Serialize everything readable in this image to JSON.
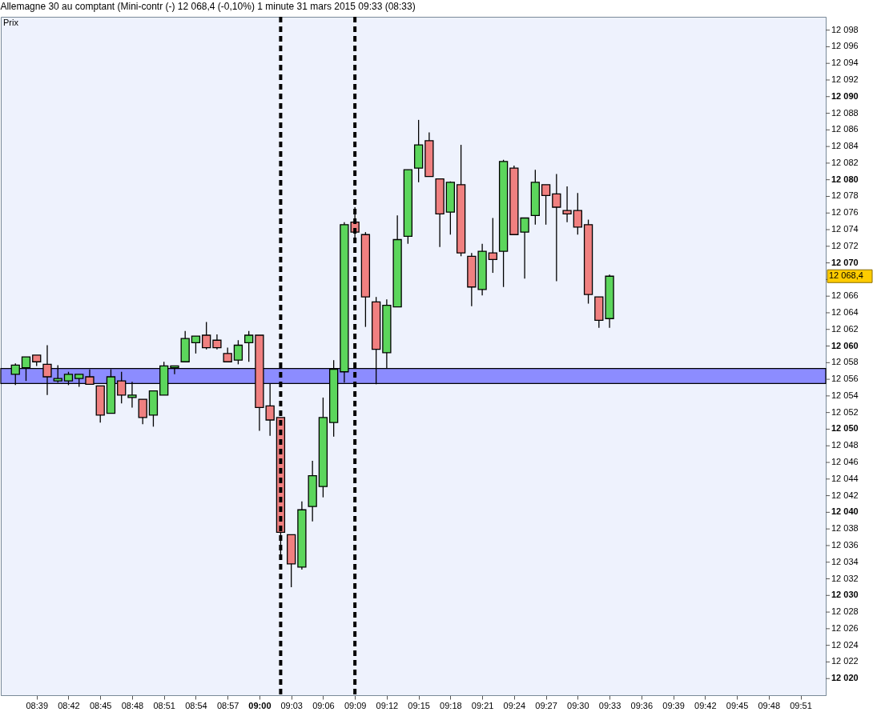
{
  "chart_data": {
    "type": "candlestick",
    "title": "Allemagne 30 au comptant (Mini-contr (-)    12 068,4 (-0,10%)    1 minute  31 mars 2015 09:33 (08:33)",
    "annotations": [
      "Prix",
      "12 068,4"
    ],
    "x": [
      "2015-03-31T08:37",
      "2015-03-31T08:38",
      "2015-03-31T08:39",
      "2015-03-31T08:40",
      "2015-03-31T08:41",
      "2015-03-31T08:42",
      "2015-03-31T08:43",
      "2015-03-31T08:44",
      "2015-03-31T08:45",
      "2015-03-31T08:46",
      "2015-03-31T08:47",
      "2015-03-31T08:48",
      "2015-03-31T08:49",
      "2015-03-31T08:50",
      "2015-03-31T08:51",
      "2015-03-31T08:52",
      "2015-03-31T08:53",
      "2015-03-31T08:54",
      "2015-03-31T08:55",
      "2015-03-31T08:56",
      "2015-03-31T08:57",
      "2015-03-31T08:58",
      "2015-03-31T08:59",
      "2015-03-31T09:00",
      "2015-03-31T09:01",
      "2015-03-31T09:02",
      "2015-03-31T09:03",
      "2015-03-31T09:04",
      "2015-03-31T09:05",
      "2015-03-31T09:06",
      "2015-03-31T09:07",
      "2015-03-31T09:08",
      "2015-03-31T09:09",
      "2015-03-31T09:10",
      "2015-03-31T09:11",
      "2015-03-31T09:12",
      "2015-03-31T09:13",
      "2015-03-31T09:14",
      "2015-03-31T09:15",
      "2015-03-31T09:16",
      "2015-03-31T09:17",
      "2015-03-31T09:18",
      "2015-03-31T09:19",
      "2015-03-31T09:20",
      "2015-03-31T09:21",
      "2015-03-31T09:22",
      "2015-03-31T09:23",
      "2015-03-31T09:24",
      "2015-03-31T09:25",
      "2015-03-31T09:26",
      "2015-03-31T09:27",
      "2015-03-31T09:28",
      "2015-03-31T09:29",
      "2015-03-31T09:30",
      "2015-03-31T09:31",
      "2015-03-31T09:32",
      "2015-03-31T09:33"
    ],
    "ohlc": [
      [
        12056.6,
        12057.9,
        12055.3,
        12057.7
      ],
      [
        12057.4,
        12058.7,
        12055.8,
        12058.7
      ],
      [
        12058.9,
        12058.9,
        12057.6,
        12058.1
      ],
      [
        12057.8,
        12060.1,
        12054.1,
        12056.3
      ],
      [
        12055.8,
        12057.7,
        12055.6,
        12056.1
      ],
      [
        12055.8,
        12056.9,
        12055.3,
        12056.6
      ],
      [
        12056.1,
        12056.6,
        12055.1,
        12056.6
      ],
      [
        12056.3,
        12057.2,
        12055.4,
        12055.4
      ],
      [
        12055.2,
        12055.2,
        12050.8,
        12051.7
      ],
      [
        12051.9,
        12057.2,
        12051.9,
        12056.3
      ],
      [
        12055.8,
        12056.9,
        12053.1,
        12054.1
      ],
      [
        12053.8,
        12055.7,
        12052.6,
        12054.1
      ],
      [
        12053.6,
        12053.6,
        12050.6,
        12051.4
      ],
      [
        12051.7,
        12054.6,
        12050.3,
        12054.6
      ],
      [
        12054.1,
        12058.1,
        12054.1,
        12057.6
      ],
      [
        12057.4,
        12057.6,
        12056.6,
        12057.6
      ],
      [
        12058.1,
        12061.8,
        12058.1,
        12060.9
      ],
      [
        12060.4,
        12061.2,
        12059.1,
        12061.2
      ],
      [
        12061.3,
        12062.9,
        12059.6,
        12059.8
      ],
      [
        12060.7,
        12061.4,
        12059.6,
        12059.8
      ],
      [
        12059.1,
        12059.8,
        12058.1,
        12058.1
      ],
      [
        12058.3,
        12060.7,
        12057.8,
        12060.1
      ],
      [
        12060.4,
        12061.8,
        12058.1,
        12061.3
      ],
      [
        12061.3,
        12061.3,
        12049.8,
        12052.6
      ],
      [
        12052.8,
        12055.5,
        12049.2,
        12051.1
      ],
      [
        12051.4,
        12051.4,
        12034.5,
        12037.6
      ],
      [
        12037.3,
        12037.3,
        12031.0,
        12033.8
      ],
      [
        12033.4,
        12041.3,
        12033.1,
        12040.3
      ],
      [
        12040.7,
        12046.2,
        12038.9,
        12044.4
      ],
      [
        12043.1,
        12053.8,
        12041.8,
        12051.4
      ],
      [
        12050.8,
        12058.3,
        12049.1,
        12057.2
      ],
      [
        12056.9,
        12074.9,
        12055.6,
        12074.6
      ],
      [
        12074.9,
        12076.7,
        12072.6,
        12073.7
      ],
      [
        12073.4,
        12073.7,
        12062.3,
        12065.9
      ],
      [
        12065.3,
        12065.9,
        12055.4,
        12059.6
      ],
      [
        12059.2,
        12065.6,
        12057.3,
        12064.9
      ],
      [
        12064.7,
        12075.7,
        12064.7,
        12072.8
      ],
      [
        12073.2,
        12081.2,
        12072.3,
        12081.2
      ],
      [
        12081.4,
        12087.2,
        12079.7,
        12084.2
      ],
      [
        12084.7,
        12085.7,
        12080.4,
        12080.4
      ],
      [
        12080.1,
        12080.1,
        12071.9,
        12075.9
      ],
      [
        12076.1,
        12079.8,
        12073.4,
        12079.7
      ],
      [
        12079.4,
        12084.2,
        12070.8,
        12071.2
      ],
      [
        12070.8,
        12071.2,
        12064.8,
        12067.1
      ],
      [
        12066.8,
        12072.3,
        12066.1,
        12071.4
      ],
      [
        12071.2,
        12075.4,
        12068.8,
        12070.4
      ],
      [
        12071.4,
        12082.4,
        12067.1,
        12082.2
      ],
      [
        12081.4,
        12081.7,
        12073.4,
        12073.4
      ],
      [
        12073.7,
        12075.4,
        12068.1,
        12075.4
      ],
      [
        12075.7,
        12081.2,
        12074.6,
        12079.7
      ],
      [
        12079.4,
        12079.4,
        12074.6,
        12078.1
      ],
      [
        12078.3,
        12080.7,
        12067.8,
        12076.7
      ],
      [
        12076.3,
        12079.2,
        12074.9,
        12075.9
      ],
      [
        12076.3,
        12078.4,
        12073.4,
        12074.3
      ],
      [
        12074.6,
        12075.2,
        12065.1,
        12066.2
      ],
      [
        12065.9,
        12065.9,
        12062.2,
        12063.1
      ],
      [
        12063.3,
        12068.6,
        12062.2,
        12068.4
      ]
    ],
    "colors": [
      "#5cd65c",
      "#5cd65c",
      "#f08080",
      "#f08080",
      "#5cd65c",
      "#5cd65c",
      "#5cd65c",
      "#f08080",
      "#f08080",
      "#5cd65c",
      "#f08080",
      "#5cd65c",
      "#f08080",
      "#5cd65c",
      "#5cd65c",
      "#5cd65c",
      "#5cd65c",
      "#5cd65c",
      "#f08080",
      "#f08080",
      "#f08080",
      "#5cd65c",
      "#5cd65c",
      "#f08080",
      "#f08080",
      "#f08080",
      "#f08080",
      "#5cd65c",
      "#5cd65c",
      "#5cd65c",
      "#5cd65c",
      "#5cd65c",
      "#f08080",
      "#f08080",
      "#f08080",
      "#5cd65c",
      "#5cd65c",
      "#5cd65c",
      "#5cd65c",
      "#f08080",
      "#f08080",
      "#5cd65c",
      "#f08080",
      "#f08080",
      "#5cd65c",
      "#f08080",
      "#5cd65c",
      "#f08080",
      "#5cd65c",
      "#5cd65c",
      "#f08080",
      "#f08080",
      "#f08080",
      "#f08080",
      "#f08080",
      "#f08080",
      "#5cd65c"
    ],
    "xlim": [
      "2015-03-31T08:36",
      "2015-03-31T09:53"
    ],
    "xticks": [
      {
        "value": "2015-03-31T08:39",
        "label": "08:39"
      },
      {
        "value": "2015-03-31T08:42",
        "label": "08:42"
      },
      {
        "value": "2015-03-31T08:45",
        "label": "08:45"
      },
      {
        "value": "2015-03-31T08:48",
        "label": "08:48"
      },
      {
        "value": "2015-03-31T08:51",
        "label": "08:51"
      },
      {
        "value": "2015-03-31T08:54",
        "label": "08:54"
      },
      {
        "value": "2015-03-31T08:57",
        "label": "08:57"
      },
      {
        "value": "2015-03-31T09:00",
        "label": "09:00"
      },
      {
        "value": "2015-03-31T09:03",
        "label": "09:03"
      },
      {
        "value": "2015-03-31T09:06",
        "label": "09:06"
      },
      {
        "value": "2015-03-31T09:09",
        "label": "09:09"
      },
      {
        "value": "2015-03-31T09:12",
        "label": "09:12"
      },
      {
        "value": "2015-03-31T09:15",
        "label": "09:15"
      },
      {
        "value": "2015-03-31T09:18",
        "label": "09:18"
      },
      {
        "value": "2015-03-31T09:21",
        "label": "09:21"
      },
      {
        "value": "2015-03-31T09:24",
        "label": "09:24"
      },
      {
        "value": "2015-03-31T09:27",
        "label": "09:27"
      },
      {
        "value": "2015-03-31T09:30",
        "label": "09:30"
      },
      {
        "value": "2015-03-31T09:33",
        "label": "09:33"
      },
      {
        "value": "2015-03-31T09:36",
        "label": "09:36"
      },
      {
        "value": "2015-03-31T09:39",
        "label": "09:39"
      },
      {
        "value": "2015-03-31T09:42",
        "label": "09:42"
      },
      {
        "value": "2015-03-31T09:45",
        "label": "09:45"
      },
      {
        "value": "2015-03-31T09:48",
        "label": "09:48"
      },
      {
        "value": "2015-03-31T09:51",
        "label": "09:51"
      }
    ],
    "ylim": [
      12018,
      12099.6
    ],
    "yticks": [
      {
        "value": 12020,
        "label": "12 020"
      },
      {
        "value": 12022,
        "label": "12 022"
      },
      {
        "value": 12024,
        "label": "12 024"
      },
      {
        "value": 12026,
        "label": "12 026"
      },
      {
        "value": 12028,
        "label": "12 028"
      },
      {
        "value": 12030,
        "label": "12 030"
      },
      {
        "value": 12032,
        "label": "12 032"
      },
      {
        "value": 12034,
        "label": "12 034"
      },
      {
        "value": 12036,
        "label": "12 036"
      },
      {
        "value": 12038,
        "label": "12 038"
      },
      {
        "value": 12040,
        "label": "12 040"
      },
      {
        "value": 12042,
        "label": "12 042"
      },
      {
        "value": 12044,
        "label": "12 044"
      },
      {
        "value": 12046,
        "label": "12 046"
      },
      {
        "value": 12048,
        "label": "12 048"
      },
      {
        "value": 12050,
        "label": "12 050"
      },
      {
        "value": 12052,
        "label": "12 052"
      },
      {
        "value": 12054,
        "label": "12 054"
      },
      {
        "value": 12056,
        "label": "12 056"
      },
      {
        "value": 12058,
        "label": "12 058"
      },
      {
        "value": 12060,
        "label": "12 060"
      },
      {
        "value": 12062,
        "label": "12 062"
      },
      {
        "value": 12064,
        "label": "12 064"
      },
      {
        "value": 12066,
        "label": "12 066"
      },
      {
        "value": 12068,
        "label": null
      },
      {
        "value": 12070,
        "label": "12 070"
      },
      {
        "value": 12072,
        "label": "12 072"
      },
      {
        "value": 12074,
        "label": "12 074"
      },
      {
        "value": 12076,
        "label": "12 076"
      },
      {
        "value": 12078,
        "label": "12 078"
      },
      {
        "value": 12080,
        "label": "12 080"
      },
      {
        "value": 12082,
        "label": "12 082"
      },
      {
        "value": 12084,
        "label": "12 084"
      },
      {
        "value": 12086,
        "label": "12 086"
      },
      {
        "value": 12088,
        "label": "12 088"
      },
      {
        "value": 12090,
        "label": "12 090"
      },
      {
        "value": 12092,
        "label": "12 092"
      },
      {
        "value": 12094,
        "label": "12 094"
      },
      {
        "value": 12096,
        "label": "12 096"
      },
      {
        "value": 12098,
        "label": "12 098"
      }
    ],
    "bands": [
      {
        "axis": "y",
        "from": 12055.5,
        "to": 12057.3,
        "color": "#8c8cff"
      }
    ],
    "ref_lines": [
      {
        "axis": "x",
        "value": "2015-03-31T09:02",
        "color": "#000000",
        "line_style": "dashed"
      },
      {
        "axis": "x",
        "value": "2015-03-31T09:09",
        "color": "#000000",
        "line_style": "dashed"
      }
    ],
    "grid": false
  }
}
